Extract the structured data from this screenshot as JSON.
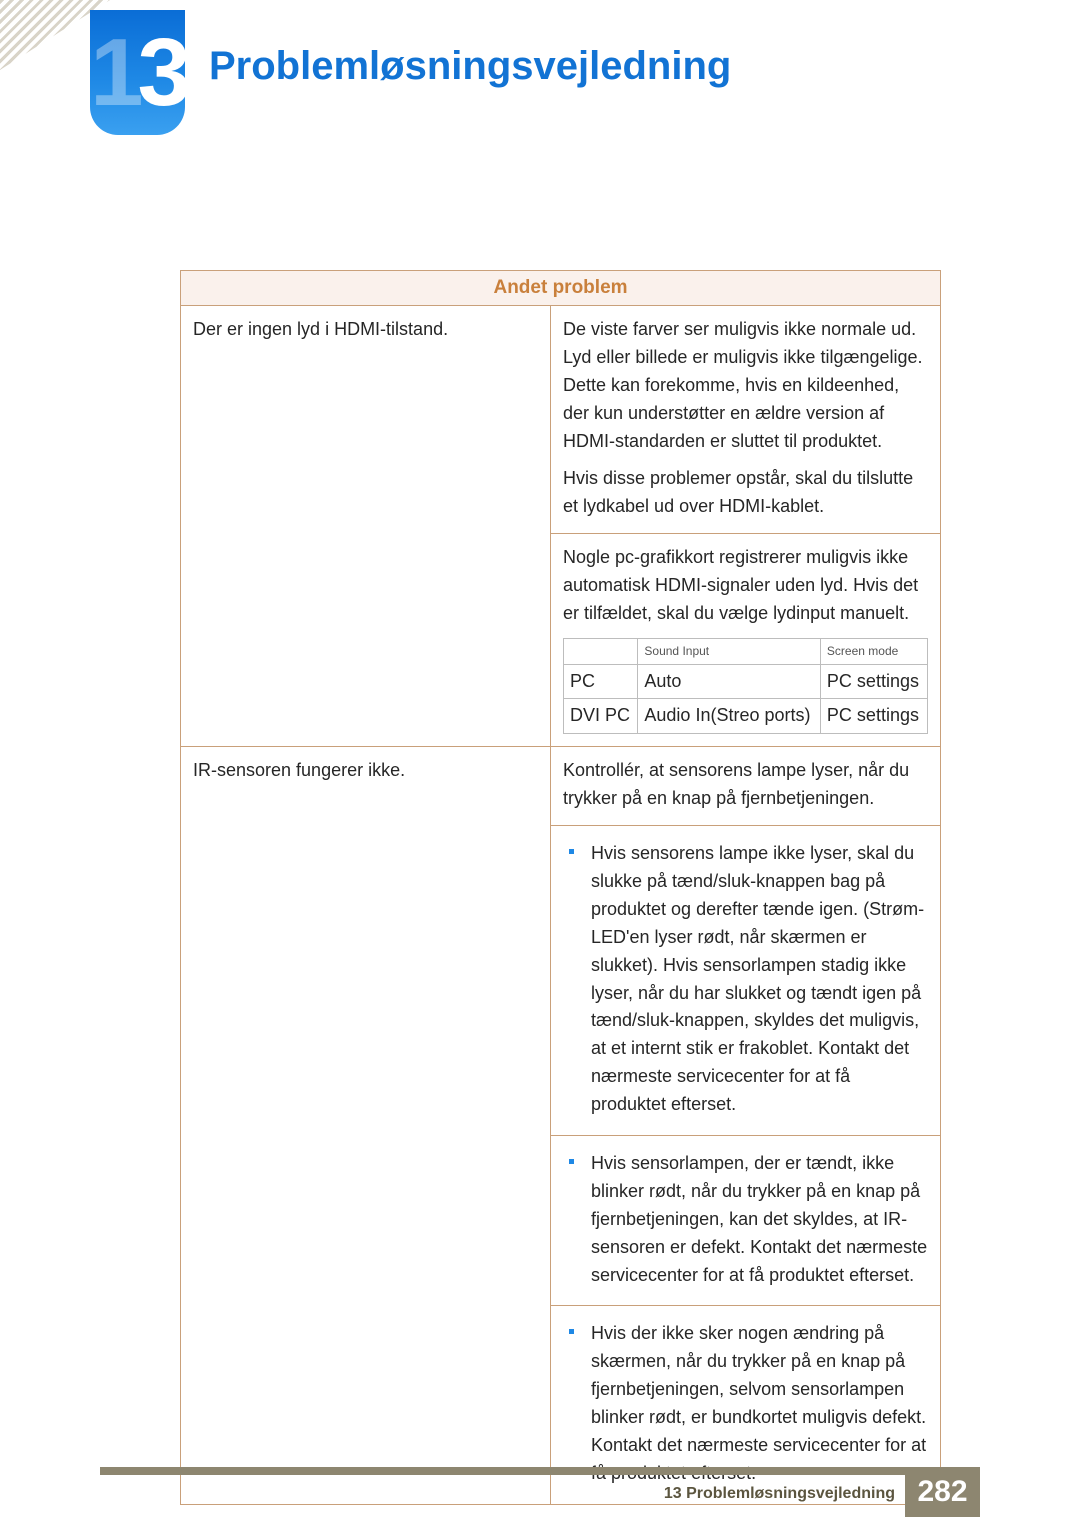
{
  "chapter_number": "13",
  "chapter_number_lead": "1",
  "chapter_number_tail": "3",
  "page_title": "Problemløsningsvejledning",
  "section_header": "Andet problem",
  "row1": {
    "problem": "Der er ingen lyd i HDMI-tilstand.",
    "ans_a_p1": "De viste farver ser muligvis ikke normale ud. Lyd eller billede er muligvis ikke tilgængelige. Dette kan forekomme, hvis en kildeenhed, der kun understøtter en ældre version af HDMI-standarden er sluttet til produktet.",
    "ans_a_p2": "Hvis disse problemer opstår, skal du tilslutte et lydkabel ud over HDMI-kablet.",
    "ans_b_p1": "Nogle pc-grafikkort registrerer muligvis ikke automatisk HDMI-signaler uden lyd. Hvis det er tilfældet, skal du vælge lydinput manuelt.",
    "inner_head_c1": "",
    "inner_head_c2": "Sound Input",
    "inner_head_c3": "Screen mode",
    "inner_r1_c1": "PC",
    "inner_r1_c2": "Auto",
    "inner_r1_c3": "PC settings",
    "inner_r2_c1": "DVI PC",
    "inner_r2_c2": "Audio In(Streo ports)",
    "inner_r2_c3": "PC settings"
  },
  "row2": {
    "problem": "IR-sensoren fungerer ikke.",
    "ans_top": "Kontrollér, at sensorens lampe lyser, når du trykker på en knap på fjernbetjeningen.",
    "bullet1": "Hvis sensorens lampe ikke lyser, skal du slukke på tænd/sluk-knappen bag på produktet og derefter tænde igen. (Strøm-LED'en lyser rødt, når skærmen er slukket). Hvis sensorlampen stadig ikke lyser, når du har slukket og tændt igen på tænd/sluk-knappen, skyldes det muligvis, at et internt stik er frakoblet. Kontakt det nærmeste servicecenter for at få produktet efterset.",
    "bullet2": "Hvis sensorlampen, der er tændt, ikke blinker rødt, når du trykker på en knap på fjernbetjeningen, kan det skyldes, at IR-sensoren er defekt. Kontakt det nærmeste servicecenter for at få produktet efterset.",
    "bullet3": "Hvis der ikke sker nogen ændring på skærmen, når du trykker på en knap på fjernbetjeningen, selvom sensorlampen blinker rødt, er bundkortet muligvis defekt. Kontakt det nærmeste servicecenter for at få produktet efterset."
  },
  "footer_label": "13 Problemløsningsvejledning",
  "footer_page": "282",
  "colors": {
    "title_blue": "#1273d4",
    "section_border": "#c9a07a",
    "section_bg": "#faf1ec",
    "section_text": "#c9803c",
    "bullet": "#1e88e5",
    "footer_bar": "#8d8670",
    "footer_text": "#5b553f"
  }
}
